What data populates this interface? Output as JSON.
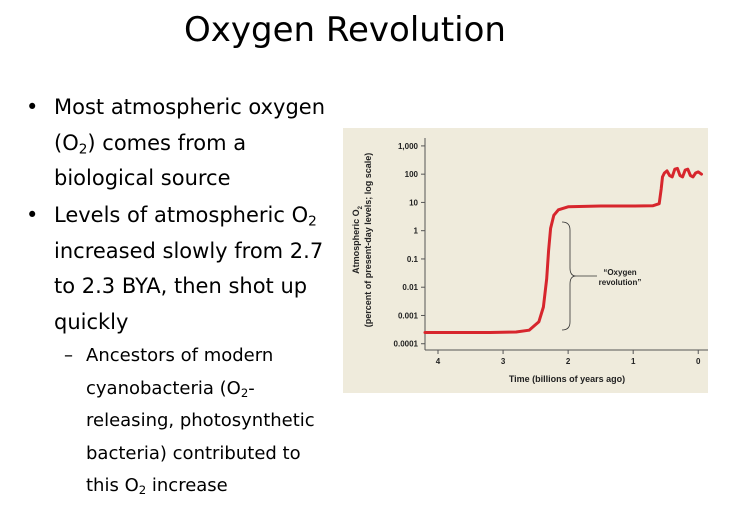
{
  "title": "Oxygen Revolution",
  "bullets": [
    {
      "lines": [
        [
          "Most atmospheric oxygen"
        ],
        [
          "(O",
          {
            "sub": "2"
          },
          ") comes from a"
        ],
        [
          "biological source"
        ]
      ]
    },
    {
      "lines": [
        [
          "Levels of atmospheric O",
          {
            "sub": "2"
          }
        ],
        [
          "increased slowly from 2.7"
        ],
        [
          "to 2.3 BYA, then shot up"
        ],
        [
          "quickly"
        ]
      ]
    }
  ],
  "sub_bullets": [
    {
      "lines": [
        [
          "Ancestors of modern"
        ],
        [
          "cyanobacteria (O",
          {
            "sub": "2"
          },
          "-"
        ],
        [
          "releasing, photosynthetic"
        ],
        [
          "bacteria) contributed to"
        ],
        [
          "this O",
          {
            "sub": "2"
          },
          " increase"
        ]
      ]
    }
  ],
  "chart_data": {
    "type": "line",
    "ylabel": [
      [
        "Atmospheric O",
        {
          "sub": "2"
        }
      ],
      [
        "(percent of present-day levels; log scale)"
      ]
    ],
    "xlabel": "Time (billions of years ago)",
    "annotation": [
      "“Oxygen",
      "revolution”"
    ],
    "log_y": true,
    "color": "#d7262d",
    "x": [
      4.2,
      3.2,
      2.8,
      2.6,
      2.45,
      2.38,
      2.33,
      2.3,
      2.27,
      2.22,
      2.15,
      2.0,
      1.5,
      1.0,
      0.7,
      0.6,
      0.57,
      0.55,
      0.52,
      0.48,
      0.44,
      0.4,
      0.36,
      0.32,
      0.28,
      0.24,
      0.2,
      0.16,
      0.12,
      0.08,
      0.04,
      0,
      -0.05
    ],
    "values": [
      0.00025,
      0.00025,
      0.00026,
      0.0003,
      0.0006,
      0.002,
      0.02,
      0.2,
      1.2,
      3.5,
      5.5,
      7,
      7.5,
      7.5,
      7.6,
      9,
      30,
      80,
      110,
      130,
      90,
      80,
      150,
      160,
      90,
      80,
      140,
      150,
      90,
      80,
      110,
      120,
      100
    ],
    "xlim": [
      4.2,
      -0.15
    ],
    "xticks": [
      4,
      3,
      2,
      1,
      0
    ],
    "ylim": [
      6e-05,
      4300
    ],
    "yticks": [
      {
        "value": 1000,
        "label": "1,000"
      },
      100,
      10,
      1,
      0.1,
      0.01,
      0.001,
      0.0001
    ]
  }
}
